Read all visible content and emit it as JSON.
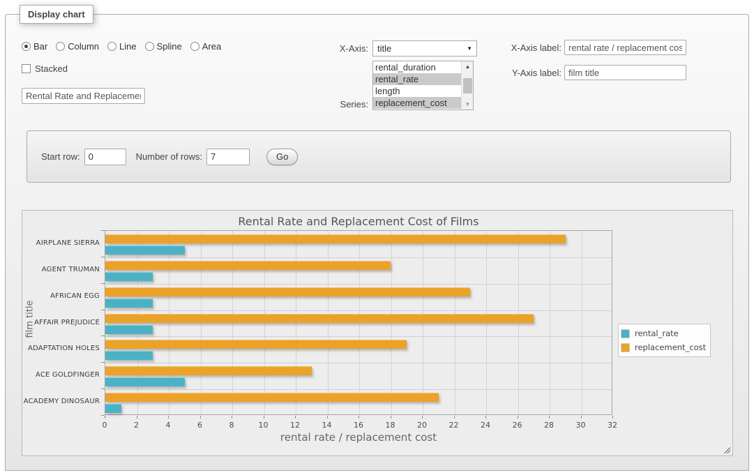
{
  "panel": {
    "legend": "Display chart",
    "chart_type_options": [
      {
        "label": "Bar",
        "checked": true
      },
      {
        "label": "Column",
        "checked": false
      },
      {
        "label": "Line",
        "checked": false
      },
      {
        "label": "Spline",
        "checked": false
      },
      {
        "label": "Area",
        "checked": false
      }
    ],
    "stacked_label": "Stacked",
    "stacked_checked": false,
    "title_input_value": "Rental Rate and Replacement Cost of Films",
    "x_axis_label_text": "X-Axis:",
    "x_axis_value": "title",
    "series_label_text": "Series:",
    "series_options": [
      {
        "label": "rental_duration",
        "selected": false
      },
      {
        "label": "rental_rate",
        "selected": true
      },
      {
        "label": "length",
        "selected": false
      },
      {
        "label": "replacement_cost",
        "selected": true
      }
    ],
    "x_axis_label_field": {
      "label": "X-Axis label:",
      "value": "rental rate / replacement cost"
    },
    "y_axis_label_field": {
      "label": "Y-Axis label:",
      "value": "film title"
    }
  },
  "pagination": {
    "start_row_label": "Start row:",
    "start_row_value": "0",
    "num_rows_label": "Number of rows:",
    "num_rows_value": "7",
    "go_label": "Go"
  },
  "chart_data": {
    "type": "bar",
    "orientation": "horizontal",
    "title": "Rental Rate and Replacement Cost of Films",
    "xlabel": "rental rate / replacement cost",
    "ylabel": "film title",
    "categories": [
      "AIRPLANE SIERRA",
      "AGENT TRUMAN",
      "AFRICAN EGG",
      "AFFAIR PREJUDICE",
      "ADAPTATION HOLES",
      "ACE GOLDFINGER",
      "ACADEMY DINOSAUR"
    ],
    "series": [
      {
        "name": "rental_rate",
        "color": "#4bb2c5",
        "values": [
          4.99,
          2.99,
          2.99,
          2.99,
          2.99,
          4.99,
          0.99
        ]
      },
      {
        "name": "replacement_cost",
        "color": "#eaa228",
        "values": [
          28.99,
          17.99,
          22.99,
          26.99,
          18.99,
          12.99,
          20.99
        ]
      }
    ],
    "xlim": [
      0,
      32
    ],
    "xticks": [
      0,
      2,
      4,
      6,
      8,
      10,
      12,
      14,
      16,
      18,
      20,
      22,
      24,
      26,
      28,
      30,
      32
    ],
    "grid": true,
    "legend_position": "right"
  }
}
